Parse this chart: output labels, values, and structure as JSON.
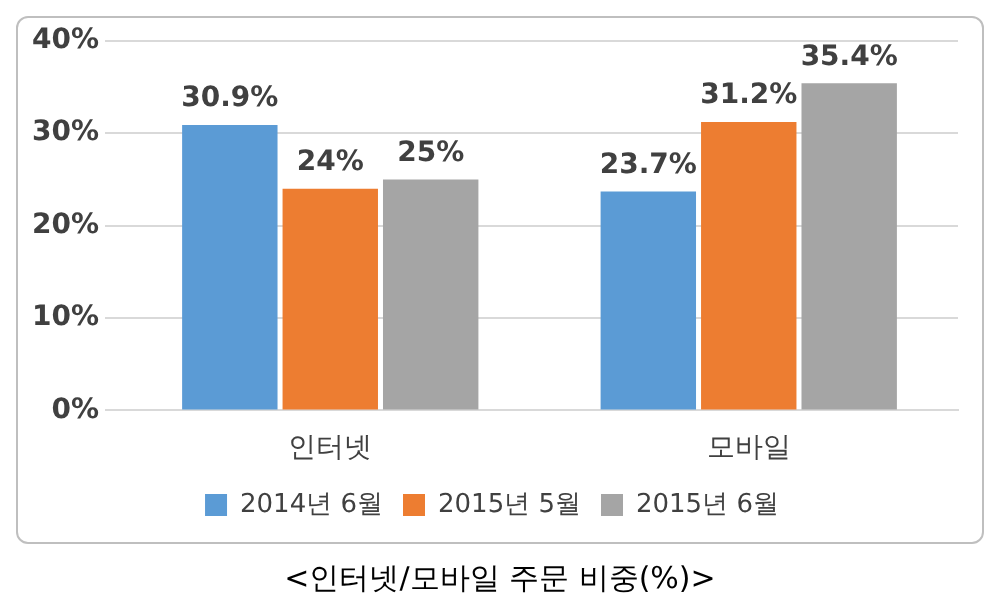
{
  "chart_data": {
    "type": "bar",
    "categories": [
      "인터넷",
      "모바일"
    ],
    "series": [
      {
        "name": "2014년 6월",
        "color": "#5b9bd5",
        "values": [
          30.9,
          23.7
        ],
        "value_labels": [
          "30.9%",
          "23.7%"
        ]
      },
      {
        "name": "2015년 5월",
        "color": "#ed7d31",
        "values": [
          24,
          31.2
        ],
        "value_labels": [
          "24%",
          "31.2%"
        ]
      },
      {
        "name": "2015년 6월",
        "color": "#a5a5a5",
        "values": [
          25,
          35.4
        ],
        "value_labels": [
          "25%",
          "35.4%"
        ]
      }
    ],
    "ylim": [
      0,
      40
    ],
    "yticks": [
      {
        "value": 0,
        "label": "0%"
      },
      {
        "value": 10,
        "label": "10%"
      },
      {
        "value": 20,
        "label": "20%"
      },
      {
        "value": 30,
        "label": "30%"
      },
      {
        "value": 40,
        "label": "40%"
      }
    ],
    "grid": "y",
    "legend": "bottom",
    "annotations": [
      "<인터넷/모바일 주문 비중(%)>"
    ]
  }
}
